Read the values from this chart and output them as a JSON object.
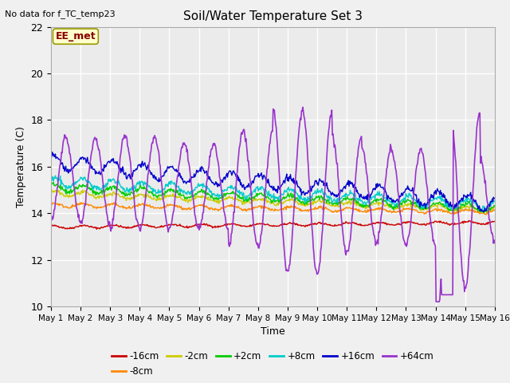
{
  "title": "Soil/Water Temperature Set 3",
  "xlabel": "Time",
  "ylabel": "Temperature (C)",
  "no_data_label": "No data for f_TC_temp23",
  "station_label": "EE_met",
  "ylim": [
    10,
    22
  ],
  "yticks": [
    10,
    12,
    14,
    16,
    18,
    20,
    22
  ],
  "n_days": 15,
  "xtick_labels": [
    "May 1",
    "May 2",
    "May 3",
    "May 4",
    "May 5",
    "May 6",
    "May 7",
    "May 8",
    "May 9",
    "May 10",
    "May 11",
    "May 12",
    "May 13",
    "May 14",
    "May 15",
    "May 16"
  ],
  "series": [
    {
      "label": "-16cm",
      "color": "#cc0000",
      "base_s": 13.4,
      "base_e": 13.6,
      "amp": 0.06,
      "noise": 0.02
    },
    {
      "label": "-8cm",
      "color": "#ff8800",
      "base_s": 14.35,
      "base_e": 14.05,
      "amp": 0.08,
      "noise": 0.03
    },
    {
      "label": "-2cm",
      "color": "#cccc00",
      "base_s": 14.85,
      "base_e": 14.15,
      "amp": 0.1,
      "noise": 0.04
    },
    {
      "label": "+2cm",
      "color": "#00cc00",
      "base_s": 15.1,
      "base_e": 14.2,
      "amp": 0.15,
      "noise": 0.05
    },
    {
      "label": "+8cm",
      "color": "#00cccc",
      "base_s": 15.35,
      "base_e": 14.35,
      "amp": 0.2,
      "noise": 0.06
    },
    {
      "label": "+16cm",
      "color": "#0000cc",
      "base_s": 16.2,
      "base_e": 14.4,
      "amp": 0.3,
      "noise": 0.07
    }
  ],
  "p64_color": "#9933cc",
  "p64_label": "+64cm",
  "bg_color": "#ebebeb",
  "grid_color": "#ffffff",
  "fig_bg": "#f0f0f0"
}
